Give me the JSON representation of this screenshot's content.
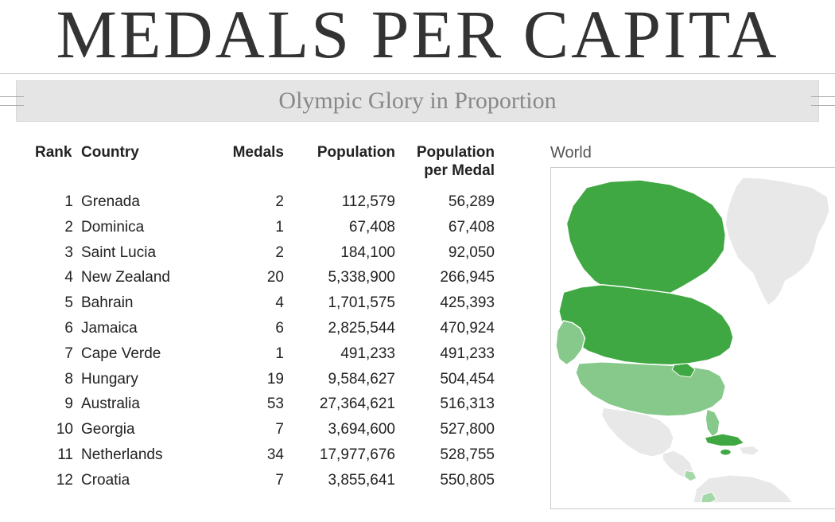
{
  "title": "MEDALS PER CAPITA",
  "subtitle": "Olympic Glory in Proportion",
  "table": {
    "columns": {
      "rank": "Rank",
      "country": "Country",
      "medals": "Medals",
      "population": "Population",
      "ppm": "Population per Medal"
    },
    "rows": [
      {
        "rank": "1",
        "country": "Grenada",
        "medals": "2",
        "population": "112,579",
        "ppm": "56,289"
      },
      {
        "rank": "2",
        "country": "Dominica",
        "medals": "1",
        "population": "67,408",
        "ppm": "67,408"
      },
      {
        "rank": "3",
        "country": "Saint Lucia",
        "medals": "2",
        "population": "184,100",
        "ppm": "92,050"
      },
      {
        "rank": "4",
        "country": "New Zealand",
        "medals": "20",
        "population": "5,338,900",
        "ppm": "266,945"
      },
      {
        "rank": "5",
        "country": "Bahrain",
        "medals": "4",
        "population": "1,701,575",
        "ppm": "425,393"
      },
      {
        "rank": "6",
        "country": "Jamaica",
        "medals": "6",
        "population": "2,825,544",
        "ppm": "470,924"
      },
      {
        "rank": "7",
        "country": "Cape Verde",
        "medals": "1",
        "population": "491,233",
        "ppm": "491,233"
      },
      {
        "rank": "8",
        "country": "Hungary",
        "medals": "19",
        "population": "9,584,627",
        "ppm": "504,454"
      },
      {
        "rank": "9",
        "country": "Australia",
        "medals": "53",
        "population": "27,364,621",
        "ppm": "516,313"
      },
      {
        "rank": "10",
        "country": "Georgia",
        "medals": "7",
        "population": "3,694,600",
        "ppm": "527,800"
      },
      {
        "rank": "11",
        "country": "Netherlands",
        "medals": "34",
        "population": "17,977,676",
        "ppm": "528,755"
      },
      {
        "rank": "12",
        "country": "Croatia",
        "medals": "7",
        "population": "3,855,641",
        "ppm": "550,805"
      }
    ]
  },
  "map": {
    "title": "World",
    "colors": {
      "land_default": "#e8e8e8",
      "stroke": "#ffffff",
      "dark_green": "#3fa842",
      "mid_green": "#62b868",
      "light_green": "#86c98a",
      "pale_green": "#a5d8a8"
    }
  },
  "style": {
    "title_color": "#333333",
    "subtitle_color": "#888888",
    "subtitle_bg": "#e5e5e5",
    "text_color": "#222222",
    "map_title_color": "#555555",
    "border_color": "#cccccc",
    "title_fontsize": 86,
    "subtitle_fontsize": 30,
    "table_fontsize": 19,
    "font_serif": "Georgia",
    "font_sans": "Arial"
  }
}
